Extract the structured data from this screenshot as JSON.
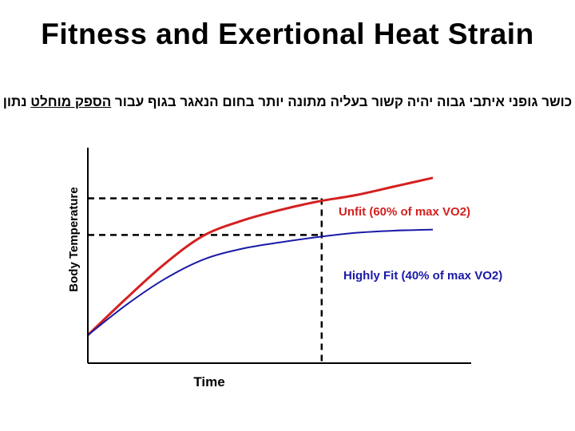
{
  "title": "Fitness and Exertional Heat Strain",
  "subtitle": {
    "prefix": "כושר גופני איתבי גבוה יהיה קשור בעליה מתונה יותר בחום הנאגר בגוף עבור ",
    "underlined": "הספק מוחלט",
    "suffix": " נתון"
  },
  "chart_data": {
    "type": "line",
    "title": "Fitness and Exertional Heat Strain",
    "xlabel": "Time",
    "ylabel": "Body Temperature",
    "xlim": [
      0,
      10
    ],
    "ylim": [
      0,
      10
    ],
    "grid": false,
    "series": [
      {
        "name": "Unfit (60% of max VO2)",
        "color": "#d42020",
        "x": [
          0,
          1,
          2,
          3,
          4,
          5,
          6,
          7,
          8,
          9
        ],
        "y": [
          1.3,
          3.0,
          4.6,
          5.9,
          6.6,
          7.1,
          7.5,
          7.8,
          8.2,
          8.6
        ]
      },
      {
        "name": "Highly Fit (40% of max VO2)",
        "color": "#1a1aa8",
        "x": [
          0,
          1,
          2,
          3,
          4,
          5,
          6,
          7,
          8,
          9
        ],
        "y": [
          1.3,
          2.7,
          3.9,
          4.8,
          5.3,
          5.6,
          5.85,
          6.05,
          6.15,
          6.2
        ]
      }
    ],
    "reference_lines": {
      "vertical_x": 6.1,
      "horizontal_y": [
        7.65,
        5.95
      ]
    }
  }
}
